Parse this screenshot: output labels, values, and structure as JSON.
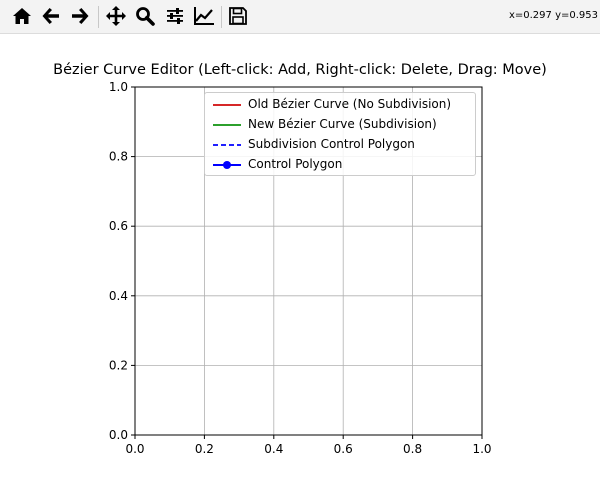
{
  "toolbar": {
    "tools": [
      {
        "name": "home-icon",
        "label": "Home"
      },
      {
        "name": "back-icon",
        "label": "Back"
      },
      {
        "name": "forward-icon",
        "label": "Forward"
      },
      {
        "name": "pan-icon",
        "label": "Pan"
      },
      {
        "name": "zoom-icon",
        "label": "Zoom"
      },
      {
        "name": "configure-subplots-icon",
        "label": "Subplots"
      },
      {
        "name": "edit-axis-icon",
        "label": "Customize"
      },
      {
        "name": "save-icon",
        "label": "Save"
      }
    ],
    "coords": "x=0.297 y=0.953"
  },
  "figure": {
    "title": "Bézier Curve Editor (Left-click: Add, Right-click: Delete, Drag: Move)"
  },
  "legend": {
    "items": [
      {
        "label": "Old Bézier Curve (No Subdivision)",
        "color": "#d62728",
        "style": "solid"
      },
      {
        "label": "New Bézier Curve (Subdivision)",
        "color": "#2ca02c",
        "style": "solid"
      },
      {
        "label": "Subdivision Control Polygon",
        "color": "#0000ff",
        "style": "dashed"
      },
      {
        "label": "Control Polygon",
        "color": "#0000ff",
        "style": "solid-marker"
      }
    ]
  },
  "axes": {
    "xlim": [
      0.0,
      1.0
    ],
    "ylim": [
      0.0,
      1.0
    ],
    "x_ticks": [
      "0.0",
      "0.2",
      "0.4",
      "0.6",
      "0.8",
      "1.0"
    ],
    "y_ticks": [
      "0.0",
      "0.2",
      "0.4",
      "0.6",
      "0.8",
      "1.0"
    ],
    "grid": true
  }
}
